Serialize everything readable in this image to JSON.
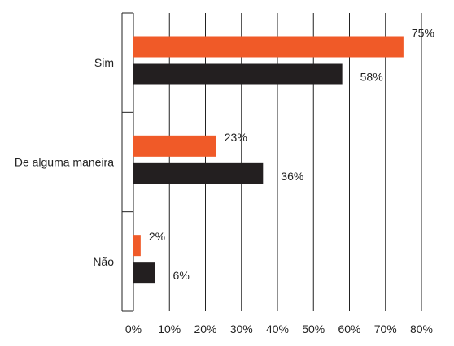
{
  "chart_data": {
    "type": "bar",
    "orientation": "horizontal",
    "categories": [
      "Sim",
      "De alguma maneira",
      "Não"
    ],
    "series": [
      {
        "values": [
          75,
          23,
          2
        ],
        "labels": [
          "75%",
          "23%",
          "2%"
        ],
        "color": "#f05a28"
      },
      {
        "values": [
          58,
          36,
          6
        ],
        "labels": [
          "58%",
          "36%",
          "6%"
        ],
        "color": "#231f20"
      }
    ],
    "xlim": [
      0,
      80
    ],
    "xticks": [
      0,
      10,
      20,
      30,
      40,
      50,
      60,
      70,
      80
    ],
    "xtick_labels": [
      "0%",
      "10%",
      "20%",
      "30%",
      "40%",
      "50%",
      "60%",
      "70%",
      "80%"
    ],
    "grid": "vertical",
    "gridline_color": "#222222",
    "title": "",
    "xlabel": "",
    "ylabel": "",
    "legend": "none"
  }
}
